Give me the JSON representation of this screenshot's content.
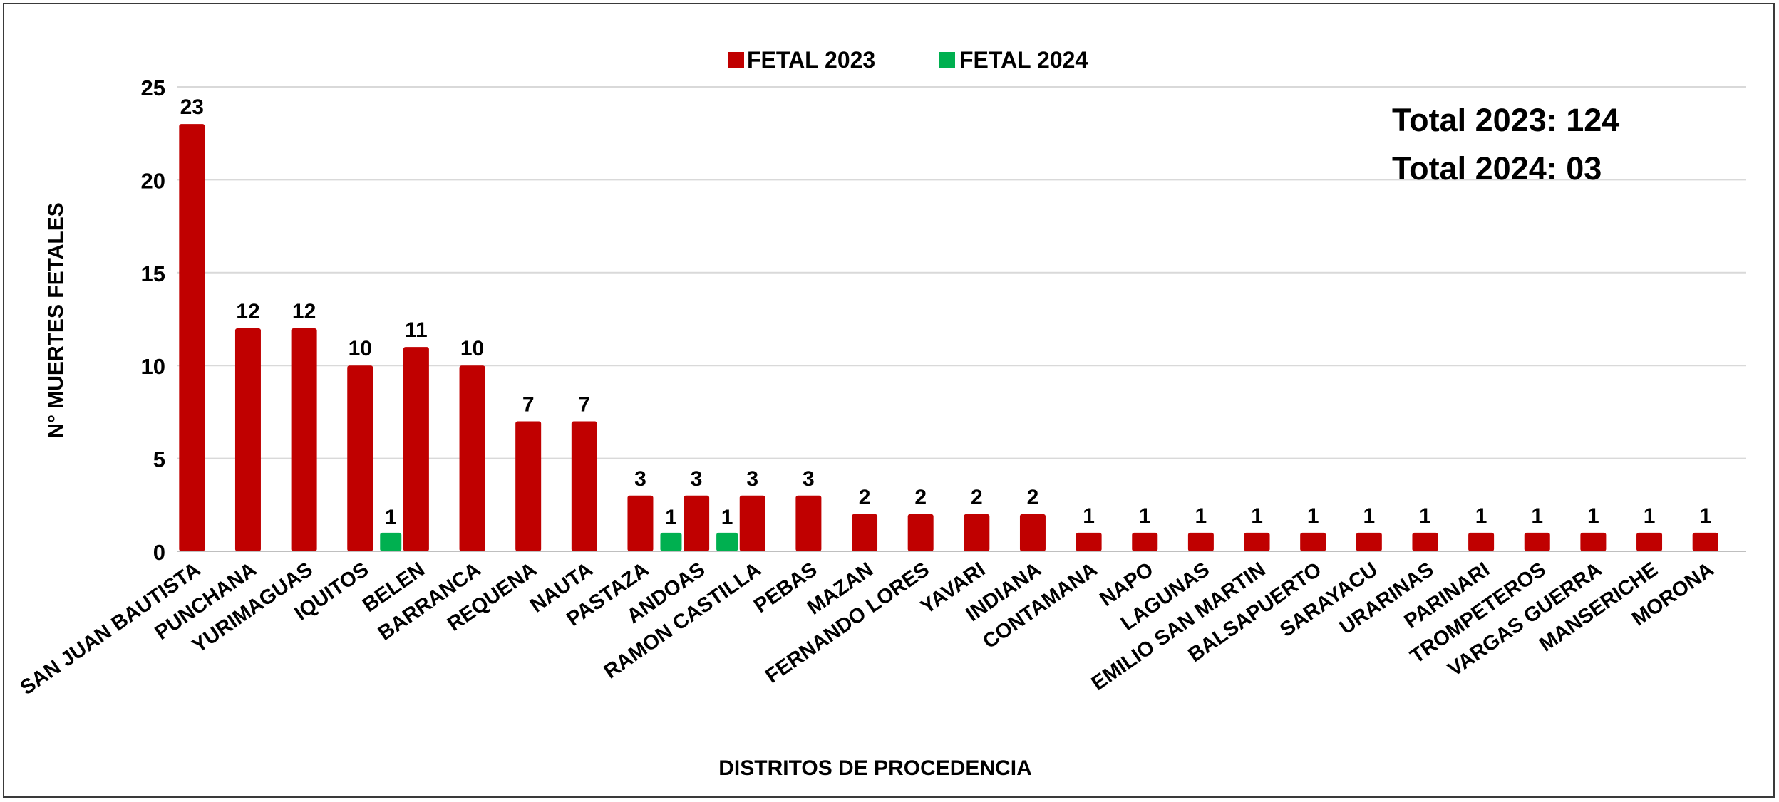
{
  "chart_data": {
    "type": "bar",
    "title": "",
    "xlabel": "DISTRITOS DE PROCEDENCIA",
    "ylabel": "N° MUERTES FETALES",
    "ylim": [
      0,
      25
    ],
    "yticks": [
      0,
      5,
      10,
      15,
      20,
      25
    ],
    "grid": true,
    "legend": "top-center",
    "categories": [
      "SAN JUAN BAUTISTA",
      "PUNCHANA",
      "YURIMAGUAS",
      "IQUITOS",
      "BELEN",
      "BARRANCA",
      "REQUENA",
      "NAUTA",
      "PASTAZA",
      "ANDOAS",
      "RAMON CASTILLA",
      "PEBAS",
      "MAZAN",
      "FERNANDO LORES",
      "YAVARI",
      "INDIANA",
      "CONTAMANA",
      "NAPO",
      "LAGUNAS",
      "EMILIO SAN MARTIN",
      "BALSAPUERTO",
      "SARAYACU",
      "URARINAS",
      "PARINARI",
      "TROMPETEROS",
      "VARGAS GUERRA",
      "MANSERICHE",
      "MORONA"
    ],
    "series": [
      {
        "name": "FETAL 2023",
        "color": "#c00000",
        "values": [
          23,
          12,
          12,
          10,
          11,
          10,
          7,
          7,
          3,
          3,
          3,
          3,
          2,
          2,
          2,
          2,
          1,
          1,
          1,
          1,
          1,
          1,
          1,
          1,
          1,
          1,
          1,
          1
        ]
      },
      {
        "name": "FETAL 2024",
        "color": "#00b050",
        "values": [
          0,
          0,
          0,
          1,
          0,
          0,
          0,
          0,
          1,
          1,
          0,
          0,
          0,
          0,
          0,
          0,
          0,
          0,
          0,
          0,
          0,
          0,
          0,
          0,
          0,
          0,
          0,
          0
        ]
      }
    ]
  },
  "totals": {
    "line1": "Total 2023: 124",
    "line2": "Total 2024: 03"
  }
}
